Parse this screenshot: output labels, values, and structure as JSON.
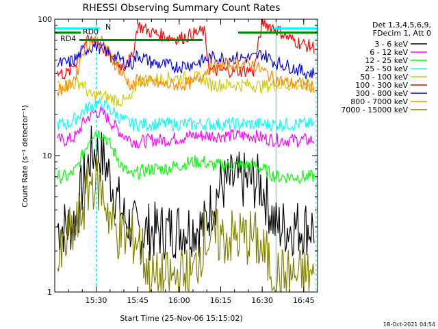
{
  "title": "RHESSI Observing Summary Count Rates",
  "xlabel": "Start Time (25-Nov-06 15:15:02)",
  "ylabel": "Count Rate (s⁻¹ detector⁻¹)",
  "timestamp": "18-Oct-2021 04:54",
  "legend": {
    "header_line1": "Det 1,3,4,5,6,9,",
    "header_line2": "FDecim 1, Att 0",
    "entries": [
      {
        "label": "3 - 6 keV",
        "color": "#000000"
      },
      {
        "label": "6 - 12 keV",
        "color": "#ff00ff"
      },
      {
        "label": "12 - 25 keV",
        "color": "#00ff00"
      },
      {
        "label": "25 - 50 keV",
        "color": "#00ffff"
      },
      {
        "label": "50 - 100 keV",
        "color": "#cccc00"
      },
      {
        "label": "100 - 300 keV",
        "color": "#ff0000"
      },
      {
        "label": "300 - 800 keV",
        "color": "#0000ff"
      },
      {
        "label": "800 - 7000 keV",
        "color": "#ff8800"
      },
      {
        "label": "7000 - 15000 keV",
        "color": "#808000"
      }
    ]
  },
  "flags": {
    "n_label": "N",
    "rd0_label": "RD0",
    "rd4_label": "RD4",
    "n_color": "#00ffff",
    "rd_color": "#008800"
  },
  "chart_data": {
    "type": "line",
    "title": "RHESSI Observing Summary Count Rates",
    "xlabel": "Start Time (25-Nov-06 15:15:02)",
    "ylabel": "Count Rate (s⁻¹ detector⁻¹)",
    "yscale": "log",
    "ylim": [
      1,
      100
    ],
    "xlim": [
      "15:15:02",
      "16:50:00"
    ],
    "x_ticks": [
      "15:30",
      "15:45",
      "16:00",
      "16:15",
      "16:30",
      "16:45"
    ],
    "y_ticks": [
      "1",
      "10",
      "100"
    ],
    "night_boundaries": [
      "15:15:02",
      "16:35:00"
    ],
    "saa_boundaries": [
      "15:30:00",
      "16:49:30"
    ],
    "x": [
      "15:16",
      "15:20",
      "15:23",
      "15:25",
      "15:28",
      "15:30",
      "15:33",
      "15:36",
      "15:40",
      "15:43",
      "15:45",
      "15:50",
      "15:55",
      "16:00",
      "16:05",
      "16:09",
      "16:11",
      "16:15",
      "16:20",
      "16:25",
      "16:27",
      "16:30",
      "16:35",
      "16:40",
      "16:45",
      "16:49"
    ],
    "series": [
      {
        "name": "3 - 6 keV",
        "values": [
          3,
          3,
          3.5,
          6,
          10,
          11,
          9,
          6,
          3.5,
          3,
          2.8,
          2.8,
          2.8,
          2.9,
          3,
          3,
          4,
          6,
          6.5,
          6.5,
          6.5,
          6,
          3,
          3,
          3,
          3
        ]
      },
      {
        "name": "6 - 12 keV",
        "values": [
          13,
          13,
          14,
          17,
          20,
          21,
          20,
          17,
          14,
          13,
          12.5,
          13,
          13,
          13.5,
          14,
          14,
          14,
          14,
          14,
          14,
          14,
          13.5,
          13,
          13,
          13,
          13
        ]
      },
      {
        "name": "12 - 25 keV",
        "values": [
          7,
          7,
          8,
          10,
          14,
          15,
          14,
          11,
          8,
          7,
          7.5,
          8,
          8,
          8.5,
          9,
          9,
          8.5,
          8.5,
          8.5,
          8.5,
          8.5,
          8,
          7,
          7,
          7,
          7
        ]
      },
      {
        "name": "25 - 50 keV",
        "values": [
          17,
          17,
          19,
          21,
          23,
          24,
          23,
          21,
          18,
          17,
          17,
          17,
          17,
          17,
          17,
          17,
          17,
          17,
          17,
          17,
          17,
          17,
          17,
          17,
          17,
          17
        ]
      },
      {
        "name": "50 - 100 keV",
        "values": [
          33,
          33,
          34,
          34,
          27,
          28,
          27,
          26,
          25,
          26,
          36,
          36,
          37,
          37,
          37,
          37,
          33,
          33,
          33,
          33,
          33,
          32,
          33,
          33,
          33,
          33
        ]
      },
      {
        "name": "100 - 300 keV",
        "values": [
          40,
          40,
          50,
          65,
          70,
          70,
          60,
          50,
          45,
          52,
          90,
          80,
          75,
          72,
          78,
          82,
          42,
          42,
          42,
          42,
          42,
          95,
          85,
          72,
          65,
          62
        ]
      },
      {
        "name": "300 - 800 keV",
        "values": [
          47,
          48,
          52,
          58,
          63,
          64,
          60,
          54,
          49,
          47,
          55,
          48,
          46,
          45,
          47,
          50,
          52,
          52,
          52,
          52,
          52,
          56,
          48,
          45,
          41,
          40
        ]
      },
      {
        "name": "800 - 7000 keV",
        "values": [
          30,
          32,
          40,
          58,
          68,
          70,
          66,
          50,
          38,
          32,
          36,
          34,
          33,
          33,
          34,
          40,
          45,
          46,
          47,
          47,
          46,
          42,
          36,
          34,
          33,
          32
        ]
      },
      {
        "name": "7000 - 15000 keV",
        "values": [
          1.5,
          2.5,
          3,
          4,
          6.5,
          6.5,
          5,
          3,
          2.5,
          2.5,
          2.5,
          1.2,
          1.2,
          1.3,
          1.3,
          2.5,
          2.5,
          2.5,
          2.5,
          2.5,
          2.5,
          2,
          1.3,
          1.3,
          1.3,
          1.3
        ]
      }
    ]
  }
}
